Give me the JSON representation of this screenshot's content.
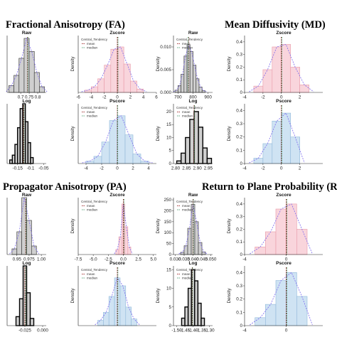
{
  "sections": [
    {
      "title": "Fractional Anisotropy (FA)"
    },
    {
      "title": "Mean Diffusivity (MD)"
    },
    {
      "title": "Propagator Anisotropy (PA)"
    },
    {
      "title": "Return to Plane Probability (RT"
    }
  ],
  "colors": {
    "gray_fill": "#cfcfcf",
    "pink_fill": "#f9d5dc",
    "pink_line": "#e89aa8",
    "blue_fill": "#cfe3f3",
    "blue_line": "#8fb7d9",
    "mean_line": "#8b0000",
    "median_line": "#2e8b57",
    "density_curve": "#7b68ee"
  },
  "chart_data": [
    {
      "type": "bar",
      "section": 0,
      "panel": "raw",
      "title": "Raw",
      "style": "gray",
      "yticks": [],
      "ylabel": "",
      "x": [
        0.645,
        0.675,
        0.705,
        0.735,
        0.765,
        0.795,
        0.825
      ],
      "values": [
        12,
        30,
        60,
        95,
        72,
        35,
        10
      ],
      "xlim": [
        0.62,
        0.85
      ],
      "ylim": [
        0,
        100
      ],
      "xticks": [
        0.7,
        0.75,
        0.8
      ],
      "mean": 0.74,
      "median": 0.742
    },
    {
      "type": "bar",
      "section": 0,
      "panel": "log",
      "title": "Log",
      "style": "black",
      "yticks": [],
      "ylabel": "",
      "x": [
        -0.175,
        -0.165,
        -0.155,
        -0.145,
        -0.135,
        -0.125,
        -0.115,
        -0.105,
        -0.095
      ],
      "values": [
        6,
        14,
        32,
        60,
        92,
        100,
        70,
        35,
        10
      ],
      "xlim": [
        -0.19,
        -0.04
      ],
      "ylim": [
        0,
        100
      ],
      "xticks": [
        -0.15,
        -0.1,
        -0.05
      ],
      "mean": -0.127,
      "median": -0.125
    },
    {
      "type": "bar",
      "section": 0,
      "panel": "zscore",
      "title": "Zscore",
      "style": "pink",
      "x": [
        -4.5,
        -3.5,
        -2.5,
        -1.5,
        -0.5,
        0.5,
        1.5,
        2.5,
        3.5
      ],
      "values": [
        2,
        5,
        12,
        24,
        38,
        40,
        25,
        10,
        3
      ],
      "xlim": [
        -6,
        6
      ],
      "ylim": [
        0,
        50
      ],
      "xticks": [
        -6,
        -4,
        -2,
        0,
        2,
        4,
        6
      ],
      "yticks": [],
      "ylabel": "Density",
      "mean": 0,
      "median": 0.1,
      "legend": {
        "title": "Central_Tendency",
        "items": [
          "mean",
          "median"
        ]
      }
    },
    {
      "type": "bar",
      "section": 0,
      "panel": "pscore",
      "title": "Pscore",
      "style": "blue",
      "x": [
        -3.5,
        -2.5,
        -1.5,
        -0.5,
        0.5,
        1.5,
        2.5,
        3.5
      ],
      "values": [
        2,
        6,
        18,
        36,
        40,
        24,
        8,
        2
      ],
      "xlim": [
        -5,
        5
      ],
      "ylim": [
        0,
        50
      ],
      "xticks": [
        -4,
        -2,
        0,
        2,
        4
      ],
      "yticks": [],
      "ylabel": "Density",
      "mean": 0,
      "median": 0.05,
      "legend": {
        "title": "Central_Tendency",
        "items": [
          "mean",
          "median"
        ]
      }
    },
    {
      "type": "bar",
      "section": 1,
      "panel": "raw",
      "title": "Raw",
      "style": "gray",
      "x": [
        690,
        710,
        730,
        750,
        770,
        790,
        810,
        830,
        850,
        870
      ],
      "values": [
        0.0005,
        0.0015,
        0.004,
        0.008,
        0.0105,
        0.009,
        0.006,
        0.003,
        0.0012,
        0.0004
      ],
      "xlim": [
        670,
        930
      ],
      "ylim": [
        0,
        0.0125
      ],
      "xticks": [
        700,
        800,
        900
      ],
      "yticks": [
        0.0,
        0.005,
        0.01
      ],
      "ytick_labels": [
        "0.000",
        "0.005",
        "0.010"
      ],
      "ylabel": "Density",
      "mean": 770,
      "median": 768,
      "legend": {
        "title": "Central_Tendency",
        "items": [
          "mean",
          "median"
        ]
      }
    },
    {
      "type": "bar",
      "section": 1,
      "panel": "log",
      "title": "Log",
      "style": "black",
      "x": [
        2.815,
        2.835,
        2.855,
        2.875,
        2.895,
        2.915,
        2.935,
        2.955
      ],
      "values": [
        1,
        4,
        10,
        17,
        20,
        14,
        6,
        2
      ],
      "xlim": [
        2.79,
        2.97
      ],
      "ylim": [
        0,
        23
      ],
      "xticks": [
        2.8,
        2.85,
        2.9,
        2.95
      ],
      "xtick_labels": [
        "2.80",
        "2.85",
        "2.90",
        "2.95"
      ],
      "yticks": [
        0,
        5,
        10,
        15,
        20
      ],
      "ylabel": "Density",
      "mean": 2.885,
      "median": 2.887,
      "legend": {
        "title": "Central_Tendency",
        "items": [
          "mean",
          "median"
        ]
      }
    },
    {
      "type": "bar",
      "section": 1,
      "panel": "zscore",
      "title": "Zscore",
      "style": "pink",
      "x": [
        -2.5,
        -1.5,
        -0.5,
        0.5,
        1.5,
        2.5
      ],
      "values": [
        0.05,
        0.18,
        0.36,
        0.38,
        0.2,
        0.06
      ],
      "xlim": [
        -4,
        4.5
      ],
      "ylim": [
        0,
        0.45
      ],
      "xticks": [
        -4,
        -2,
        0,
        2
      ],
      "yticks": [
        0.0,
        0.1,
        0.2,
        0.3,
        0.4
      ],
      "ylabel": "Density",
      "mean": 0,
      "median": 0.05
    },
    {
      "type": "bar",
      "section": 1,
      "panel": "pscore",
      "title": "Pscore",
      "style": "blue",
      "x": [
        -2.5,
        -1.5,
        -0.5,
        0.5,
        1.5
      ],
      "values": [
        0.04,
        0.15,
        0.32,
        0.38,
        0.2
      ],
      "xlim": [
        -4,
        4.5
      ],
      "ylim": [
        0,
        0.45
      ],
      "xticks": [
        -4,
        -2,
        0,
        2
      ],
      "yticks": [
        0.0,
        0.1,
        0.2,
        0.3,
        0.4
      ],
      "ylabel": "Density",
      "mean": 0,
      "median": 0.05
    },
    {
      "type": "bar",
      "section": 2,
      "panel": "raw",
      "title": "Raw",
      "style": "gray",
      "yticks": [],
      "ylabel": "",
      "x": [
        0.945,
        0.955,
        0.965,
        0.975,
        0.985
      ],
      "values": [
        10,
        40,
        100,
        60,
        15
      ],
      "xlim": [
        0.93,
        1.01
      ],
      "ylim": [
        0,
        100
      ],
      "xticks": [
        0.95,
        0.975,
        1.0
      ],
      "xtick_labels": [
        "0.95",
        "0.975",
        "1.00"
      ],
      "mean": 0.968,
      "median": 0.969
    },
    {
      "type": "bar",
      "section": 2,
      "panel": "log",
      "title": "Log",
      "style": "black",
      "yticks": [],
      "ylabel": "",
      "x": [
        -0.035,
        -0.03,
        -0.025,
        -0.02,
        -0.015
      ],
      "values": [
        15,
        45,
        100,
        55,
        12
      ],
      "xlim": [
        -0.05,
        0.005
      ],
      "ylim": [
        0,
        100
      ],
      "xticks": [
        -0.025,
        0.0
      ],
      "xtick_labels": [
        "-0.025",
        "0.000"
      ],
      "mean": -0.025,
      "median": -0.024
    },
    {
      "type": "bar",
      "section": 2,
      "panel": "zscore",
      "title": "Zscore",
      "style": "pink",
      "yticks": [],
      "x": [
        -1.0,
        -0.5,
        0.0,
        0.5,
        1.0
      ],
      "values": [
        4,
        14,
        40,
        22,
        6
      ],
      "xlim": [
        -7.5,
        5.5
      ],
      "ylim": [
        0,
        45
      ],
      "xticks": [
        -7.5,
        -5,
        -2.5,
        0,
        2.5,
        5
      ],
      "xtick_labels": [
        "-7.5",
        "-5.0",
        "-2.5",
        "0.0",
        "2.5",
        "5.0"
      ],
      "ylabel": "Density",
      "mean": 0,
      "median": 0.1,
      "legend": {
        "title": "Central_Tendency",
        "items": [
          "mean",
          "median"
        ]
      }
    },
    {
      "type": "bar",
      "section": 2,
      "panel": "pscore",
      "title": "Pscore",
      "style": "blue",
      "yticks": [],
      "x": [
        -1.5,
        -1.0,
        -0.5,
        0.0,
        0.5,
        1.0,
        1.5
      ],
      "values": [
        4,
        10,
        22,
        36,
        30,
        14,
        5
      ],
      "xlim": [
        -3.5,
        3.5
      ],
      "ylim": [
        0,
        45
      ],
      "xticks": [],
      "ylabel": "Density",
      "mean": 0,
      "median": 0.05,
      "legend": {
        "title": "Central_Tendency",
        "items": [
          "mean",
          "median"
        ]
      }
    },
    {
      "type": "bar",
      "section": 3,
      "panel": "raw",
      "title": "Raw",
      "style": "gray",
      "x": [
        0.034,
        0.036,
        0.038,
        0.04,
        0.042,
        0.044,
        0.046
      ],
      "values": [
        10,
        40,
        120,
        230,
        150,
        55,
        12
      ],
      "xlim": [
        0.029,
        0.051
      ],
      "ylim": [
        0,
        260
      ],
      "xticks": [
        0.03,
        0.035,
        0.04,
        0.045,
        0.05
      ],
      "xtick_labels": [
        "0.030",
        "0.035",
        "0.040",
        "0.045",
        "0.050"
      ],
      "yticks": [
        0,
        50,
        100,
        150,
        200,
        250
      ],
      "ylabel": "Density",
      "mean": 0.04,
      "median": 0.0402,
      "legend": {
        "title": "Central_Tendency",
        "items": [
          "mean",
          "median"
        ]
      }
    },
    {
      "type": "bar",
      "section": 3,
      "panel": "log",
      "title": "Log",
      "style": "black",
      "x": [
        -1.46,
        -1.44,
        -1.42,
        -1.4,
        -1.38,
        -1.36,
        -1.34
      ],
      "values": [
        2,
        5,
        10,
        15,
        12,
        6,
        2
      ],
      "xlim": [
        -1.52,
        -1.28
      ],
      "ylim": [
        0,
        16
      ],
      "xticks": [
        -1.5,
        -1.45,
        -1.4,
        -1.35,
        -1.3
      ],
      "xtick_labels": [
        "-1.50",
        "-1.45",
        "-1.40",
        "-1.35",
        "-1.30"
      ],
      "yticks": [
        0,
        5,
        10,
        15
      ],
      "ylabel": "Density",
      "mean": -1.405,
      "median": -1.403,
      "legend": {
        "title": "Central_Tendency",
        "items": [
          "mean",
          "median"
        ]
      }
    },
    {
      "type": "bar",
      "section": 3,
      "panel": "zscore",
      "title": "Zscore",
      "style": "pink",
      "x": [
        -2.5,
        -1.5,
        -0.5,
        0.5,
        1.5
      ],
      "values": [
        0.06,
        0.18,
        0.36,
        0.4,
        0.2
      ],
      "xlim": [
        -4,
        3.5
      ],
      "ylim": [
        0,
        0.45
      ],
      "xticks": [
        -4,
        0
      ],
      "yticks": [
        0.0,
        0.1,
        0.2,
        0.3,
        0.4
      ],
      "ylabel": "Density",
      "mean": 0,
      "median": 0.05
    },
    {
      "type": "bar",
      "section": 3,
      "panel": "pscore",
      "title": "Pscore",
      "style": "blue",
      "x": [
        -2.5,
        -1.5,
        -0.5,
        0.5,
        1.5
      ],
      "values": [
        0.06,
        0.16,
        0.34,
        0.4,
        0.22
      ],
      "xlim": [
        -4,
        3.5
      ],
      "ylim": [
        0,
        0.45
      ],
      "xticks": [
        -4,
        0
      ],
      "yticks": [
        0.0,
        0.1,
        0.2,
        0.3,
        0.4
      ],
      "ylabel": "Density",
      "mean": 0,
      "median": 0.05
    }
  ]
}
